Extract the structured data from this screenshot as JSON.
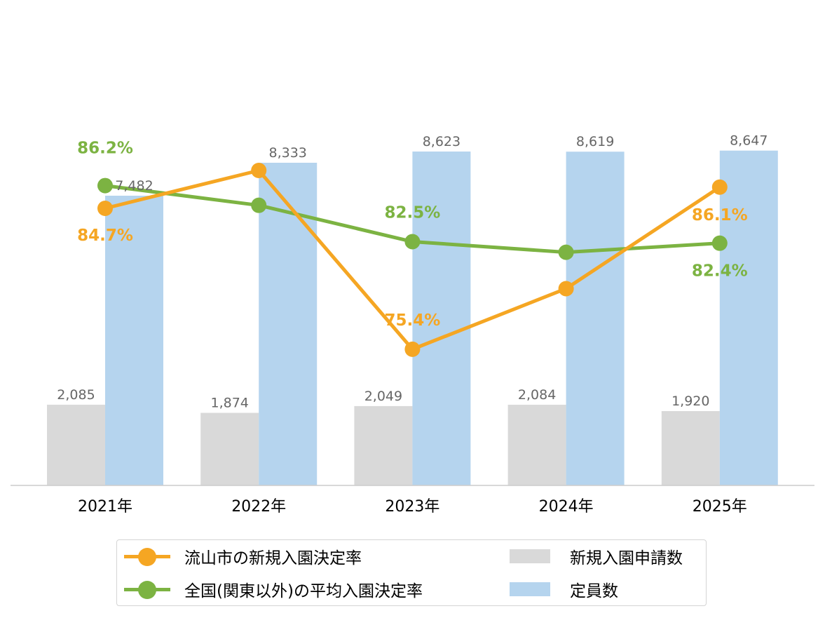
{
  "chart_data": {
    "type": "bar",
    "categories": [
      "2021年",
      "2022年",
      "2023年",
      "2024年",
      "2025年"
    ],
    "bar_series": [
      {
        "name": "新規入園申請数",
        "color": "#d9d9d9",
        "values": [
          2085,
          1874,
          2049,
          2084,
          1920
        ],
        "labels": [
          "2,085",
          "1,874",
          "2,049",
          "2,084",
          "1,920"
        ]
      },
      {
        "name": "定員数",
        "color": "#b5d4ee",
        "values": [
          7482,
          8333,
          8623,
          8619,
          8647
        ],
        "labels": [
          "7,482",
          "8,333",
          "8,623",
          "8,619",
          "8,647"
        ]
      }
    ],
    "line_series": [
      {
        "name": "流山市の新規入園決定率",
        "color": "#f5a623",
        "values": [
          84.7,
          87.2,
          75.4,
          79.4,
          86.1
        ],
        "labels": [
          "84.7%",
          "",
          "75.4%",
          "",
          "86.1%"
        ]
      },
      {
        "name": "全国(関東以外)の平均入園決定率",
        "color": "#7cb342",
        "values": [
          86.2,
          84.9,
          82.5,
          81.8,
          82.4
        ],
        "labels": [
          "86.2%",
          "",
          "82.5%",
          "",
          "82.4%"
        ]
      }
    ],
    "bar_ylim": [
      0,
      10000
    ],
    "line_ylim": [
      60,
      95
    ],
    "legend_position": "bottom"
  }
}
